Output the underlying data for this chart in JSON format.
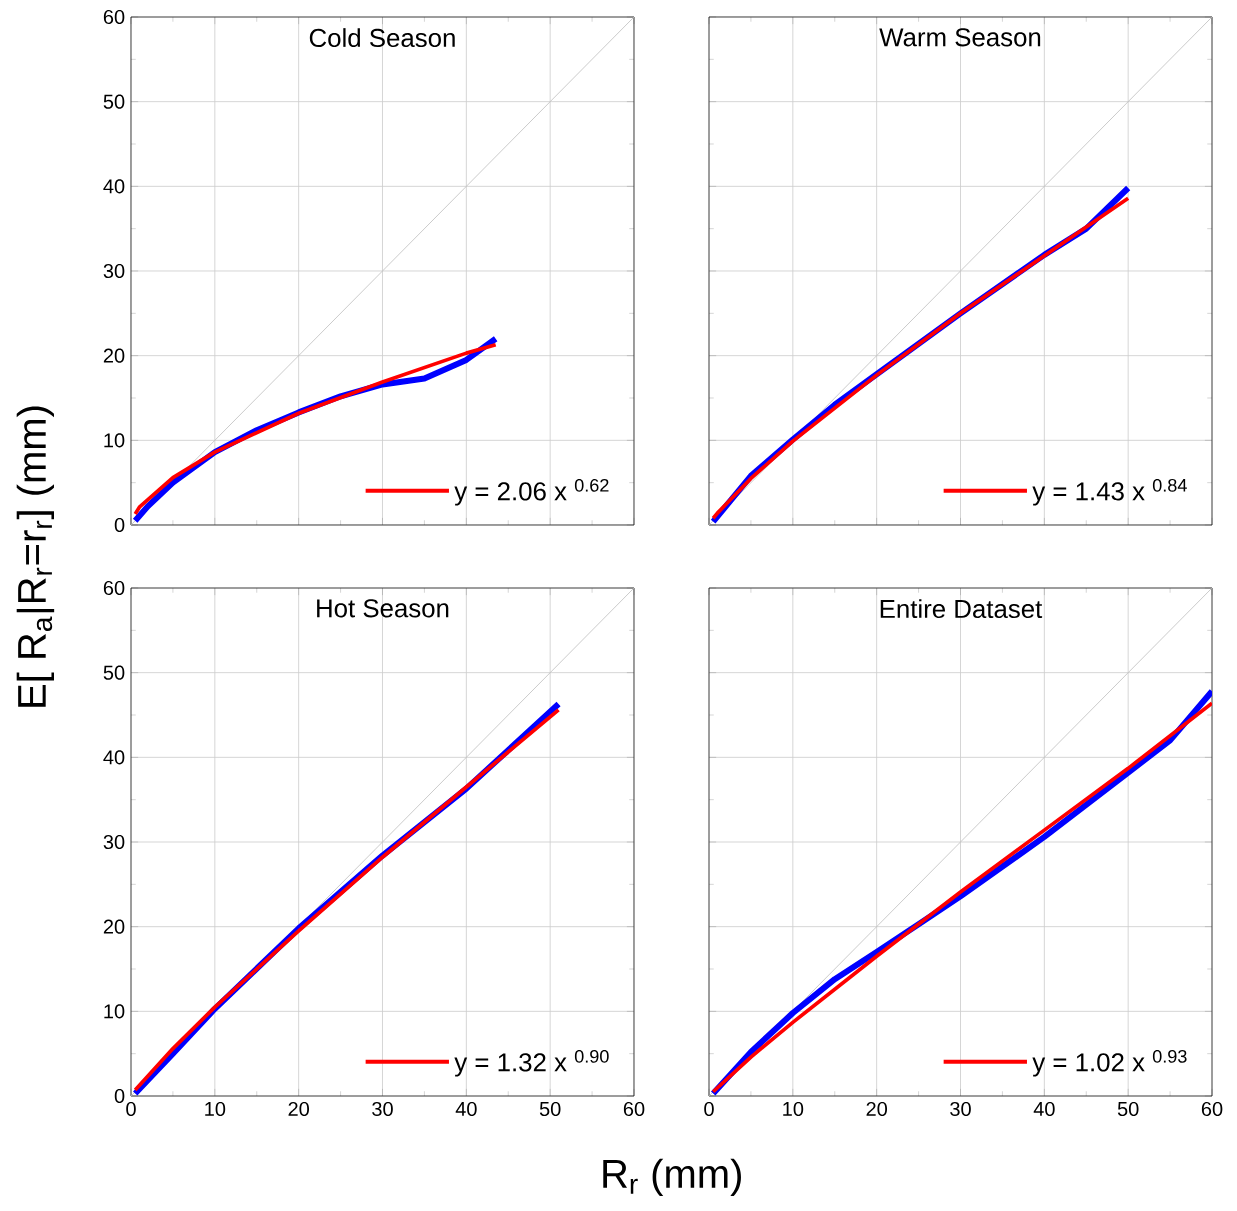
{
  "chart_data": [
    {
      "type": "line",
      "title": "Cold Season",
      "ylabel": "E[ R$_{a}$|R$_{r}$=r$_{r}$] (mm)",
      "xlim": [
        0,
        60
      ],
      "ylim": [
        0,
        60
      ],
      "xticks": [
        0,
        10,
        20,
        30,
        40,
        50,
        60
      ],
      "yticks": [
        0,
        10,
        20,
        30,
        40,
        50,
        60
      ],
      "grid": true,
      "legend": "bottom right",
      "tick_labels": "y",
      "series": [
        {
          "color": "#c0c0c0",
          "x": [
            0,
            60
          ],
          "values": [
            0,
            60
          ]
        },
        {
          "color": "#0000ff",
          "x": [
            0.5,
            2,
            5,
            10,
            15,
            20,
            25,
            30,
            35,
            40,
            43.5
          ],
          "values": [
            0.5,
            2.2,
            5.0,
            8.6,
            11.2,
            13.3,
            15.2,
            16.6,
            17.3,
            19.5,
            22.0
          ]
        },
        {
          "name": "y = 2.06 x $^{0.62}$",
          "color": "#ff0000",
          "x": [
            0.5,
            1,
            5,
            10,
            20,
            30,
            40,
            43.5
          ],
          "values": [
            1.3,
            2.1,
            5.6,
            8.6,
            13.2,
            16.9,
            20.3,
            21.3
          ]
        }
      ]
    },
    {
      "type": "line",
      "title": "Warm Season",
      "xlim": [
        0,
        60
      ],
      "ylim": [
        0,
        60
      ],
      "xticks": [
        0,
        10,
        20,
        30,
        40,
        50,
        60
      ],
      "yticks": [
        0,
        10,
        20,
        30,
        40,
        50,
        60
      ],
      "grid": true,
      "legend": "bottom right",
      "tick_labels": false,
      "series": [
        {
          "color": "#c0c0c0",
          "x": [
            0,
            60
          ],
          "values": [
            0,
            60
          ]
        },
        {
          "color": "#0000ff",
          "x": [
            0.5,
            5,
            10,
            15,
            20,
            30,
            40,
            45,
            50
          ],
          "values": [
            0.4,
            5.8,
            10.1,
            14.2,
            17.8,
            25.0,
            31.9,
            35.0,
            39.8
          ]
        },
        {
          "name": "y = 1.43 x $^{0.84}$",
          "color": "#ff0000",
          "x": [
            0.5,
            1,
            5,
            10,
            20,
            30,
            40,
            50
          ],
          "values": [
            0.8,
            1.4,
            5.5,
            9.9,
            17.7,
            25.0,
            31.8,
            38.6
          ]
        }
      ]
    },
    {
      "type": "line",
      "title": "Hot Season",
      "xlabel": "R$_{r}$ (mm)",
      "xlim": [
        0,
        60
      ],
      "ylim": [
        0,
        60
      ],
      "xticks": [
        0,
        10,
        20,
        30,
        40,
        50,
        60
      ],
      "yticks": [
        0,
        10,
        20,
        30,
        40,
        50,
        60
      ],
      "grid": true,
      "legend": "bottom right",
      "series": [
        {
          "color": "#c0c0c0",
          "x": [
            0,
            60
          ],
          "values": [
            0,
            60
          ]
        },
        {
          "color": "#0000ff",
          "x": [
            0.5,
            5,
            10,
            20,
            30,
            40,
            51
          ],
          "values": [
            0.3,
            5.0,
            10.3,
            19.8,
            28.4,
            36.3,
            46.3
          ]
        },
        {
          "name": "y = 1.32 x $^{0.90}$",
          "color": "#ff0000",
          "x": [
            0.5,
            5,
            10,
            20,
            30,
            40,
            51
          ],
          "values": [
            0.7,
            5.6,
            10.5,
            19.5,
            28.2,
            36.5,
            45.6
          ]
        }
      ]
    },
    {
      "type": "line",
      "title": "Entire Dataset",
      "xlim": [
        0,
        60
      ],
      "ylim": [
        0,
        60
      ],
      "xticks": [
        0,
        10,
        20,
        30,
        40,
        50,
        60
      ],
      "yticks": [
        0,
        10,
        20,
        30,
        40,
        50,
        60
      ],
      "grid": true,
      "legend": "bottom right",
      "tick_labels": "x",
      "series": [
        {
          "color": "#c0c0c0",
          "x": [
            0,
            60
          ],
          "values": [
            0,
            60
          ]
        },
        {
          "color": "#0000ff",
          "x": [
            0.5,
            5,
            10,
            15,
            20,
            25,
            30,
            40,
            50,
            55,
            60
          ],
          "values": [
            0.3,
            5.2,
            9.8,
            13.8,
            17.0,
            20.3,
            23.6,
            30.6,
            38.2,
            42.0,
            47.8
          ]
        },
        {
          "name": "y = 1.02 x $^{0.93}$",
          "color": "#ff0000",
          "x": [
            0.5,
            5,
            10,
            20,
            30,
            40,
            50,
            60
          ],
          "values": [
            0.5,
            4.6,
            8.7,
            16.5,
            24.1,
            31.4,
            38.7,
            46.4
          ]
        }
      ]
    }
  ]
}
